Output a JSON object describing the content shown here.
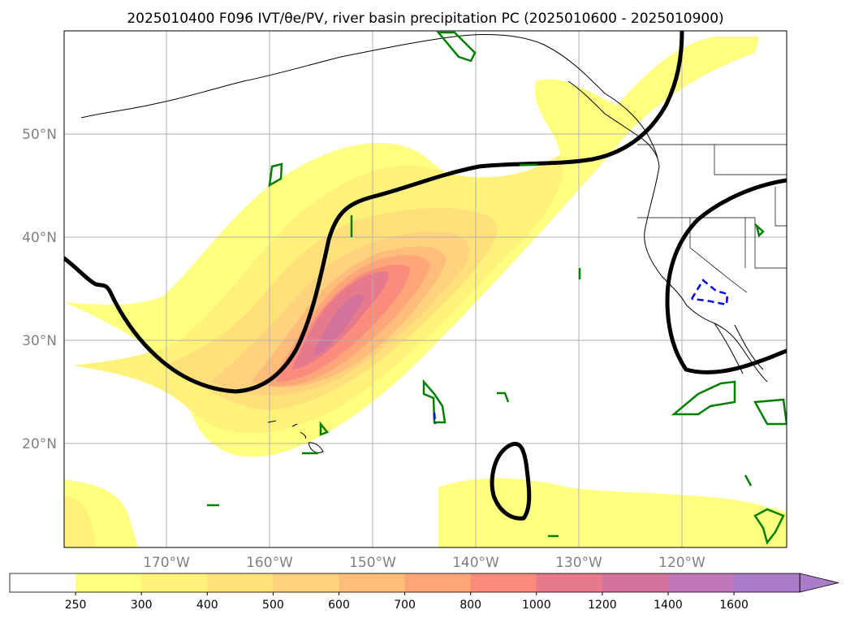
{
  "title": "2025010400 F096 IVT/θe/PV, river basin precipitation PC (2025010600 - 2025010900)",
  "chart_data": {
    "type": "map-contour",
    "lon_ticks": [
      "170°W",
      "160°W",
      "150°W",
      "140°W",
      "130°W",
      "120°W"
    ],
    "lat_ticks": [
      "50°N",
      "40°N",
      "30°N",
      "20°N"
    ],
    "grid": true,
    "colorbar": {
      "levels": [
        "250",
        "300",
        "400",
        "500",
        "600",
        "700",
        "800",
        "1000",
        "1200",
        "1400",
        "1600"
      ],
      "colors": [
        "#ffffff",
        "#ffff80",
        "#fff27a",
        "#ffe07a",
        "#ffd27d",
        "#ffbc7a",
        "#ffa57a",
        "#fa8c7d",
        "#e67a8c",
        "#d2739b",
        "#be78b9",
        "#aa7dc8"
      ],
      "extend": "max"
    }
  }
}
